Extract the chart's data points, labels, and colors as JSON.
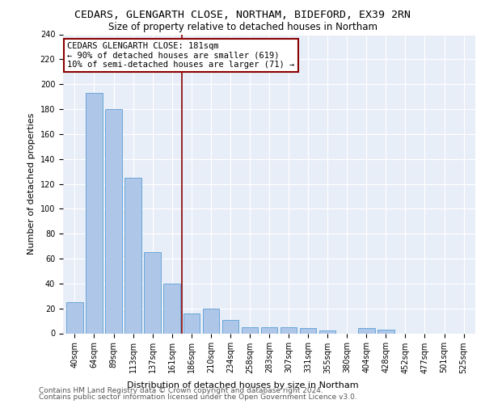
{
  "title": "CEDARS, GLENGARTH CLOSE, NORTHAM, BIDEFORD, EX39 2RN",
  "subtitle": "Size of property relative to detached houses in Northam",
  "xlabel": "Distribution of detached houses by size in Northam",
  "ylabel": "Number of detached properties",
  "categories": [
    "40sqm",
    "64sqm",
    "89sqm",
    "113sqm",
    "137sqm",
    "161sqm",
    "186sqm",
    "210sqm",
    "234sqm",
    "258sqm",
    "283sqm",
    "307sqm",
    "331sqm",
    "355sqm",
    "380sqm",
    "404sqm",
    "428sqm",
    "452sqm",
    "477sqm",
    "501sqm",
    "525sqm"
  ],
  "values": [
    25,
    193,
    180,
    125,
    65,
    40,
    16,
    20,
    11,
    5,
    5,
    5,
    4,
    2,
    0,
    4,
    3,
    0,
    0,
    0,
    0
  ],
  "bar_color": "#aec6e8",
  "bar_edge_color": "#5a9fd4",
  "vline_x": 5.5,
  "vline_color": "#8b0000",
  "annotation_box_color": "#8b0000",
  "annotation_text_line1": "CEDARS GLENGARTH CLOSE: 181sqm",
  "annotation_text_line2": "← 90% of detached houses are smaller (619)",
  "annotation_text_line3": "10% of semi-detached houses are larger (71) →",
  "ylim": [
    0,
    240
  ],
  "yticks": [
    0,
    20,
    40,
    60,
    80,
    100,
    120,
    140,
    160,
    180,
    200,
    220,
    240
  ],
  "footer_line1": "Contains HM Land Registry data © Crown copyright and database right 2024.",
  "footer_line2": "Contains public sector information licensed under the Open Government Licence v3.0.",
  "bg_color": "#e8eef8",
  "title_fontsize": 9.5,
  "subtitle_fontsize": 8.5,
  "axis_label_fontsize": 8,
  "tick_fontsize": 7,
  "footer_fontsize": 6.5,
  "annotation_fontsize": 7.5
}
